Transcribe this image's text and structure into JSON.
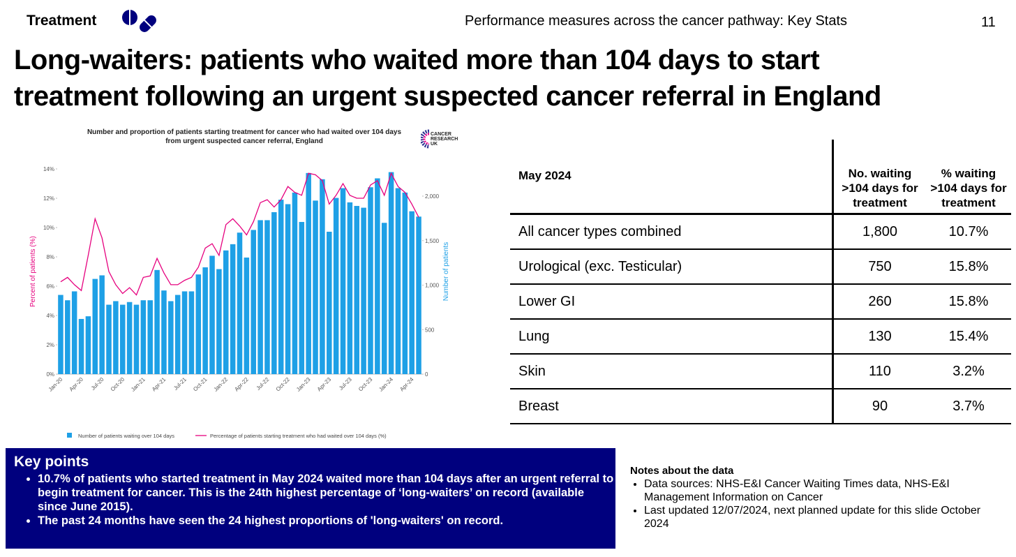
{
  "header": {
    "section": "Treatment",
    "deck": "Performance measures across the cancer pathway: Key Stats",
    "page": "11"
  },
  "title": [
    "Long-waiters: patients who waited more than 104 days to start",
    "treatment following an urgent suspected cancer referral in England"
  ],
  "logo": [
    "CANCER",
    "RESEARCH",
    "UK"
  ],
  "chart_data": {
    "type": "bar-line",
    "title": [
      "Number and proportion of patients starting treatment for cancer who had waited over 104 days",
      "from urgent suspected cancer referral, England"
    ],
    "ylabel": "Percent of patients (%)",
    "y2label": "Number of patients",
    "categories": [
      "Jan-20",
      null,
      null,
      "Apr-20",
      null,
      null,
      "Jul-20",
      null,
      null,
      "Oct-20",
      null,
      null,
      "Jan-21",
      null,
      null,
      "Apr-21",
      null,
      null,
      "Jul-21",
      null,
      null,
      "Oct-21",
      null,
      null,
      "Jan-22",
      null,
      null,
      "Apr-22",
      null,
      null,
      "Jul-22",
      null,
      null,
      "Oct-22",
      null,
      null,
      "Jan-23",
      null,
      null,
      "Apr-23",
      null,
      null,
      "Jul-23",
      null,
      null,
      "Oct-23",
      null,
      null,
      "Jan-24",
      null,
      null,
      "Apr-24",
      null
    ],
    "series": [
      {
        "name": "Number of patients waiting over 104 days",
        "type": "bar",
        "axis": "y2",
        "color": "#1ea0e6",
        "values": [
          890,
          830,
          930,
          620,
          650,
          1070,
          1110,
          780,
          820,
          780,
          810,
          780,
          830,
          830,
          1170,
          940,
          820,
          890,
          930,
          930,
          1120,
          1200,
          1330,
          1180,
          1390,
          1460,
          1590,
          1310,
          1620,
          1730,
          1730,
          1820,
          1960,
          1910,
          2040,
          1710,
          2260,
          1950,
          2190,
          1600,
          1980,
          2090,
          1930,
          1890,
          1870,
          2100,
          2200,
          1700,
          2270,
          2090,
          2040,
          1830,
          1770
        ]
      },
      {
        "name": "Percentage of patients starting treatment who had waited over 104 days (%)",
        "type": "line",
        "axis": "y",
        "color": "#e6007e",
        "values": [
          6.3,
          6.6,
          6.1,
          5.7,
          8.1,
          10.6,
          9.3,
          7.0,
          6.1,
          5.5,
          5.9,
          5.4,
          6.6,
          6.7,
          7.9,
          6.9,
          6.1,
          6.1,
          6.4,
          6.6,
          7.3,
          8.6,
          8.9,
          8.1,
          10.2,
          10.6,
          10.1,
          9.5,
          10.4,
          11.7,
          11.9,
          11.4,
          11.9,
          12.8,
          12.4,
          12.2,
          13.7,
          13.6,
          13.2,
          11.6,
          12.2,
          13.0,
          12.2,
          12.0,
          12.0,
          12.9,
          13.2,
          12.2,
          13.7,
          12.8,
          12.4,
          11.6,
          10.7
        ]
      }
    ],
    "ylim": [
      0,
      14
    ],
    "yticks": [
      {
        "value": 0,
        "label": "0%"
      },
      {
        "value": 2,
        "label": "2%"
      },
      {
        "value": 4,
        "label": "4%"
      },
      {
        "value": 6,
        "label": "6%"
      },
      {
        "value": 8,
        "label": "8%"
      },
      {
        "value": 10,
        "label": "10%"
      },
      {
        "value": 12,
        "label": "12%"
      },
      {
        "value": 14,
        "label": "14%"
      }
    ],
    "y2lim": [
      0,
      2306
    ],
    "y2ticks": [
      0,
      500,
      {
        "value": 1000,
        "label": "1,000"
      },
      {
        "value": 1500,
        "label": "1,500"
      },
      {
        "value": 2000,
        "label": "2,000"
      }
    ],
    "legend": "bottom"
  },
  "table": {
    "header": [
      "May 2024",
      "No. waiting >104 days for treatment",
      "% waiting >104 days for treatment"
    ],
    "rows": [
      [
        "All cancer types combined",
        "1,800",
        "10.7%"
      ],
      [
        "Urological (exc. Testicular)",
        "750",
        "15.8%"
      ],
      [
        "Lower GI",
        "260",
        "15.8%"
      ],
      [
        "Lung",
        "130",
        "15.4%"
      ],
      [
        "Skin",
        "110",
        "3.2%"
      ],
      [
        "Breast",
        "90",
        "3.7%"
      ]
    ]
  },
  "key_points": {
    "title": "Key points",
    "items": [
      "10.7% of patients who started treatment in May 2024 waited more than 104 days after an urgent referral to begin treatment for cancer. This is the 24th highest percentage of ‘long-waiters’ on record (available since June 2015).",
      "The past 24 months have seen the 24 highest proportions of 'long-waiters' on record."
    ]
  },
  "notes": {
    "title": "Notes about the data",
    "items": [
      "Data sources: NHS-E&I Cancer Waiting Times data, NHS-E&I Management Information on Cancer",
      "Last updated 12/07/2024, next planned update for this slide October 2024"
    ]
  }
}
